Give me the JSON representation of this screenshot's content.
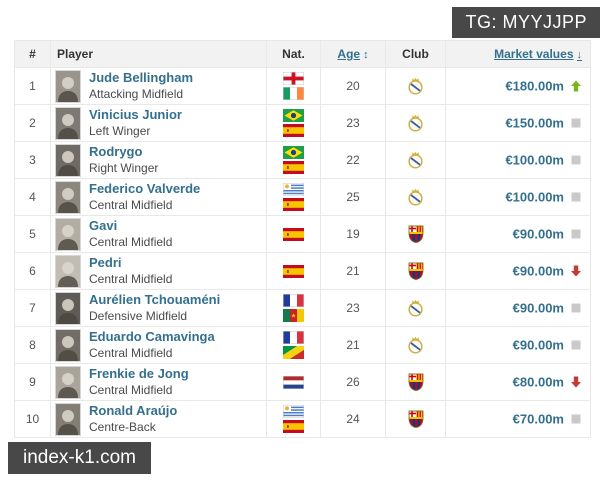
{
  "watermarks": {
    "top_right": "TG: MYYJJPP",
    "bottom_left": "index-k1.com"
  },
  "table": {
    "headers": {
      "rank": "#",
      "player": "Player",
      "nat": "Nat.",
      "age": "Age",
      "club": "Club",
      "value": "Market values"
    },
    "sort_icons": {
      "age": "↕",
      "value": "↓"
    },
    "rows": [
      {
        "rank": "1",
        "name": "Jude Bellingham",
        "position": "Attacking Midfield",
        "flags": [
          "england",
          "ireland"
        ],
        "age": "20",
        "club": "real-madrid",
        "value": "€180.00m",
        "trend": "up"
      },
      {
        "rank": "2",
        "name": "Vinicius Junior",
        "position": "Left Winger",
        "flags": [
          "brazil",
          "spain"
        ],
        "age": "23",
        "club": "real-madrid",
        "value": "€150.00m",
        "trend": "same"
      },
      {
        "rank": "3",
        "name": "Rodrygo",
        "position": "Right Winger",
        "flags": [
          "brazil",
          "spain"
        ],
        "age": "22",
        "club": "real-madrid",
        "value": "€100.00m",
        "trend": "same"
      },
      {
        "rank": "4",
        "name": "Federico Valverde",
        "position": "Central Midfield",
        "flags": [
          "uruguay",
          "spain"
        ],
        "age": "25",
        "club": "real-madrid",
        "value": "€100.00m",
        "trend": "same"
      },
      {
        "rank": "5",
        "name": "Gavi",
        "position": "Central Midfield",
        "flags": [
          "spain"
        ],
        "age": "19",
        "club": "barcelona",
        "value": "€90.00m",
        "trend": "same"
      },
      {
        "rank": "6",
        "name": "Pedri",
        "position": "Central Midfield",
        "flags": [
          "spain"
        ],
        "age": "21",
        "club": "barcelona",
        "value": "€90.00m",
        "trend": "down"
      },
      {
        "rank": "7",
        "name": "Aurélien Tchouaméni",
        "position": "Defensive Midfield",
        "flags": [
          "france",
          "cameroon"
        ],
        "age": "23",
        "club": "real-madrid",
        "value": "€90.00m",
        "trend": "same"
      },
      {
        "rank": "8",
        "name": "Eduardo Camavinga",
        "position": "Central Midfield",
        "flags": [
          "france",
          "congo"
        ],
        "age": "21",
        "club": "real-madrid",
        "value": "€90.00m",
        "trend": "same"
      },
      {
        "rank": "9",
        "name": "Frenkie de Jong",
        "position": "Central Midfield",
        "flags": [
          "netherlands"
        ],
        "age": "26",
        "club": "barcelona",
        "value": "€80.00m",
        "trend": "down"
      },
      {
        "rank": "10",
        "name": "Ronald Araújo",
        "position": "Centre-Back",
        "flags": [
          "uruguay",
          "spain"
        ],
        "age": "24",
        "club": "barcelona",
        "value": "€70.00m",
        "trend": "same"
      }
    ]
  },
  "colors": {
    "link": "#34708e",
    "trend_up": "#7ab41d",
    "trend_down": "#c23b34",
    "trend_same": "#c9c9c9",
    "header_bg": "#f2f2f2",
    "badge_bg": "#484848"
  }
}
